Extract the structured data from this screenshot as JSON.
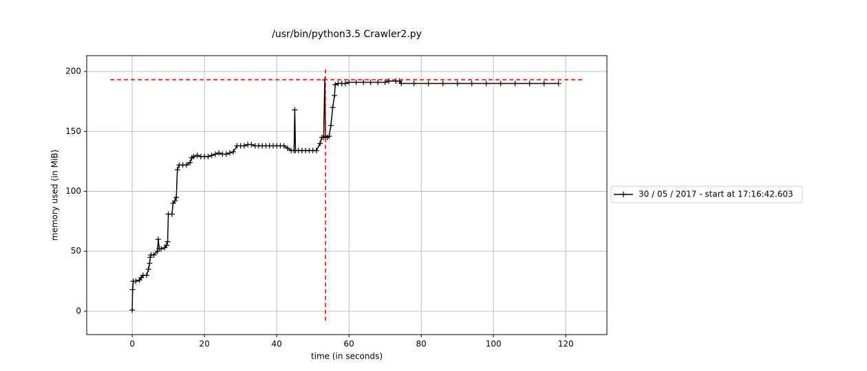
{
  "chart_data": {
    "type": "line",
    "title": "/usr/bin/python3.5 Crawler2.py",
    "x_label": "time (in seconds)",
    "y_label": "memory used (in MiB)",
    "xlim": [
      -12.6,
      131.4
    ],
    "ylim": [
      -19.5,
      213.2
    ],
    "xticks": [
      0,
      20,
      40,
      60,
      80,
      100,
      120
    ],
    "yticks": [
      0,
      50,
      100,
      150,
      200
    ],
    "grid": true,
    "legend": "right",
    "x": [
      0,
      0.1,
      0.3,
      1,
      2,
      2.5,
      3,
      4,
      4.5,
      4.8,
      5,
      5.2,
      6,
      7,
      7.2,
      7.5,
      8,
      9,
      9.5,
      9.8,
      10,
      11,
      11.3,
      11.8,
      12.2,
      12.5,
      13,
      14,
      15,
      16,
      16.5,
      17,
      18,
      19,
      20,
      21,
      22,
      23,
      24,
      25,
      26,
      27,
      28,
      29,
      30,
      31,
      32,
      33,
      34,
      35,
      36,
      37,
      38,
      39,
      40,
      41,
      42,
      43,
      44,
      44.8,
      45,
      45.2,
      46,
      47,
      48,
      49,
      50,
      51,
      52,
      52.5,
      53,
      53.3,
      53.5,
      54,
      54.5,
      55,
      55.5,
      56,
      56.2,
      57,
      58,
      59,
      60,
      62,
      64,
      66,
      68,
      70,
      71,
      73,
      74,
      74.5,
      78,
      82,
      86,
      90,
      94,
      98,
      102,
      106,
      110,
      114,
      118
    ],
    "series": [
      {
        "name": "30 / 05 / 2017 - start at 17:16:42.603",
        "color": "#000000",
        "values": [
          1,
          18,
          25,
          25,
          26,
          28,
          30,
          30,
          35,
          40,
          45,
          47,
          47,
          50,
          60,
          52,
          52,
          53,
          55,
          58,
          81,
          81,
          90,
          92,
          95,
          118,
          122,
          122,
          122,
          124,
          128,
          129,
          130,
          129,
          129,
          129,
          130,
          131,
          132,
          131,
          131,
          132,
          133,
          138,
          138,
          138,
          139,
          139,
          138,
          138,
          138,
          138,
          138,
          138,
          138,
          138,
          138,
          136,
          134,
          134,
          168,
          134,
          134,
          134,
          134,
          134,
          134,
          134,
          140,
          145,
          145,
          193,
          146,
          145,
          146,
          155,
          170,
          180,
          189,
          190,
          190,
          190,
          191,
          191,
          191,
          191,
          191,
          191,
          192,
          192,
          192,
          190,
          190,
          190,
          190,
          190,
          190,
          190,
          190,
          190,
          190,
          190,
          190
        ]
      }
    ],
    "hlines": [
      {
        "y": 193.1,
        "xmin": -6.1,
        "xmax": 125,
        "color": "#ff0000"
      }
    ],
    "vlines": [
      {
        "x": 53.5,
        "ymin": -8,
        "ymax": 202.3,
        "color": "#ff0000"
      }
    ]
  }
}
